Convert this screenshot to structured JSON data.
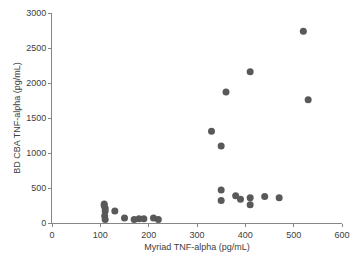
{
  "chart_data": {
    "type": "scatter",
    "x_label": "Myriad TNF-alpha (pg/mL)",
    "y_label": "BD CBA TNF-alpha (pg/mL)",
    "x": [
      108,
      108,
      110,
      110,
      109,
      110,
      130,
      150,
      170,
      180,
      190,
      210,
      220,
      330,
      350,
      350,
      350,
      360,
      380,
      390,
      410,
      410,
      410,
      440,
      470,
      520,
      530
    ],
    "values": [
      270,
      250,
      210,
      170,
      100,
      50,
      170,
      70,
      50,
      60,
      60,
      70,
      50,
      1310,
      1100,
      470,
      320,
      1870,
      390,
      340,
      2160,
      360,
      260,
      380,
      360,
      2740,
      1760
    ],
    "color": "#595959",
    "marker": "circle",
    "grid": false,
    "xlim": [
      0,
      600
    ],
    "xticks": [
      0,
      100,
      200,
      300,
      400,
      500,
      600
    ],
    "ylim": [
      0,
      3000
    ],
    "yticks": [
      0,
      500,
      1000,
      1500,
      2000,
      2500,
      3000
    ]
  }
}
